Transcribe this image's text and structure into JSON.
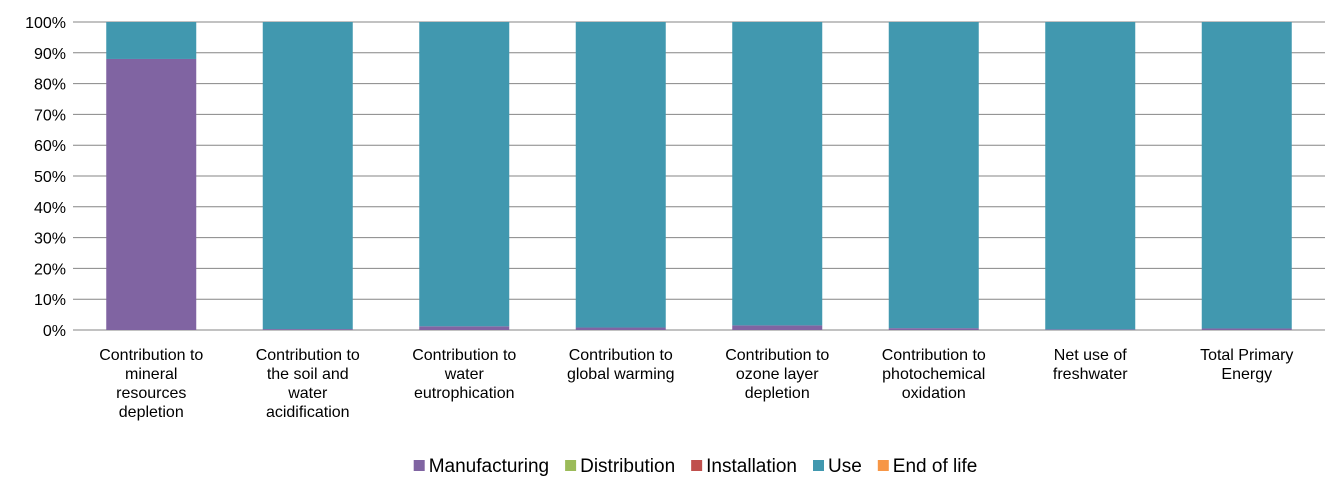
{
  "chart_data": {
    "type": "bar",
    "stacked": true,
    "percent": true,
    "categories": [
      [
        "Contribution to",
        "mineral",
        "resources",
        "depletion"
      ],
      [
        "Contribution to",
        "the soil and",
        "water",
        "acidification"
      ],
      [
        "Contribution to",
        "water",
        "eutrophication"
      ],
      [
        "Contribution to",
        "global warming"
      ],
      [
        "Contribution to",
        "ozone layer",
        "depletion"
      ],
      [
        "Contribution to",
        "photochemical",
        "oxidation"
      ],
      [
        "Net use of",
        "freshwater"
      ],
      [
        "Total Primary",
        "Energy"
      ]
    ],
    "series": [
      {
        "name": "Manufacturing",
        "color": "#8064A2",
        "values": [
          88,
          0.3,
          1.2,
          0.8,
          1.5,
          0.6,
          0.2,
          0.5
        ]
      },
      {
        "name": "Distribution",
        "color": "#9BBB59",
        "values": [
          0,
          0,
          0,
          0,
          0,
          0,
          0,
          0
        ]
      },
      {
        "name": "Installation",
        "color": "#C0504D",
        "values": [
          0,
          0,
          0,
          0,
          0,
          0,
          0,
          0
        ]
      },
      {
        "name": "Use",
        "color": "#4198AF",
        "values": [
          12,
          99.7,
          98.8,
          99.2,
          98.5,
          99.4,
          99.8,
          99.5
        ]
      },
      {
        "name": "End of life",
        "color": "#F79646",
        "values": [
          0,
          0,
          0,
          0,
          0,
          0,
          0,
          0
        ]
      }
    ],
    "yticks": [
      "0%",
      "10%",
      "20%",
      "30%",
      "40%",
      "50%",
      "60%",
      "70%",
      "80%",
      "90%",
      "100%"
    ],
    "ylim": [
      0,
      100
    ],
    "grid": true,
    "legend_position": "bottom"
  }
}
